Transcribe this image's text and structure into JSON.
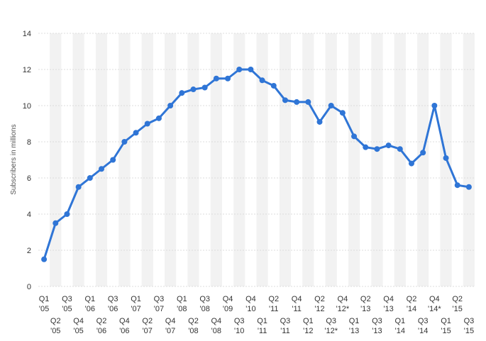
{
  "chart_data": {
    "type": "line",
    "ylabel": "Subscribers in millions",
    "xlabel": "",
    "ylim": [
      0,
      14
    ],
    "yticks": [
      0,
      2,
      4,
      6,
      8,
      10,
      12,
      14
    ],
    "grid": true,
    "color": "#2f75d6",
    "categories": [
      [
        "Q1",
        "'05"
      ],
      [
        "Q2",
        "'05"
      ],
      [
        "Q3",
        "'05"
      ],
      [
        "Q4",
        "'05"
      ],
      [
        "Q1",
        "'06"
      ],
      [
        "Q2",
        "'06"
      ],
      [
        "Q3",
        "'06"
      ],
      [
        "Q4",
        "'06"
      ],
      [
        "Q1",
        "'07"
      ],
      [
        "Q2",
        "'07"
      ],
      [
        "Q3",
        "'07"
      ],
      [
        "Q4",
        "'07"
      ],
      [
        "Q1",
        "'08"
      ],
      [
        "Q2",
        "'08"
      ],
      [
        "Q3",
        "'08"
      ],
      [
        "Q4",
        "'08"
      ],
      [
        "Q4",
        "'09"
      ],
      [
        "Q3",
        "'10"
      ],
      [
        "Q4",
        "'10"
      ],
      [
        "Q1",
        "'11"
      ],
      [
        "Q2",
        "'11"
      ],
      [
        "Q3",
        "'11"
      ],
      [
        "Q4",
        "'11"
      ],
      [
        "Q1",
        "'12"
      ],
      [
        "Q2",
        "'12"
      ],
      [
        "Q3",
        "'12*"
      ],
      [
        "Q4",
        "'12*"
      ],
      [
        "Q1",
        "'13"
      ],
      [
        "Q2",
        "'13"
      ],
      [
        "Q3",
        "'13"
      ],
      [
        "Q4",
        "'13"
      ],
      [
        "Q1",
        "'14"
      ],
      [
        "Q2",
        "'14"
      ],
      [
        "Q3",
        "'14"
      ],
      [
        "Q4",
        "'14*"
      ],
      [
        "Q1",
        "'15"
      ],
      [
        "Q2",
        "'15"
      ],
      [
        "Q3",
        "'15"
      ]
    ],
    "values": [
      1.5,
      3.5,
      4.0,
      5.5,
      6.0,
      6.5,
      7.0,
      8.0,
      8.5,
      9.0,
      9.3,
      10.0,
      10.7,
      10.9,
      11.0,
      11.5,
      11.5,
      12.0,
      12.0,
      11.4,
      11.1,
      10.3,
      10.2,
      10.2,
      9.1,
      10.0,
      9.6,
      8.3,
      7.7,
      7.6,
      7.8,
      7.6,
      6.8,
      7.4,
      10.0,
      7.1,
      5.6,
      5.5
    ]
  }
}
